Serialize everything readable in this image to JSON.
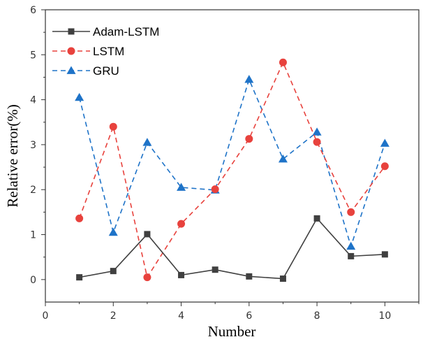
{
  "chart_data": {
    "type": "line",
    "title": "",
    "xlabel": "Number",
    "ylabel": "Relative error(%)",
    "xlim": [
      0,
      11
    ],
    "ylim": [
      -0.5,
      6
    ],
    "xticks": [
      0,
      2,
      4,
      6,
      8,
      10
    ],
    "yticks": [
      0,
      1,
      2,
      3,
      4,
      5,
      6
    ],
    "grid": false,
    "legend_position": "top-left",
    "x": [
      1,
      2,
      3,
      4,
      5,
      6,
      7,
      8,
      9,
      10
    ],
    "series": [
      {
        "name": "Adam-LSTM",
        "color": "#404040",
        "line_style": "solid",
        "marker": "square",
        "values": [
          0.05,
          0.19,
          1.01,
          0.1,
          0.22,
          0.07,
          0.02,
          1.36,
          0.52,
          0.56
        ]
      },
      {
        "name": "LSTM",
        "color": "#e8423d",
        "line_style": "dashed",
        "marker": "circle",
        "values": [
          1.36,
          3.4,
          0.05,
          1.24,
          2.01,
          3.13,
          4.83,
          3.06,
          1.5,
          2.52
        ]
      },
      {
        "name": "GRU",
        "color": "#1e73c8",
        "line_style": "dashed",
        "marker": "triangle",
        "values": [
          4.05,
          1.05,
          3.05,
          2.05,
          1.99,
          4.45,
          2.68,
          3.28,
          0.74,
          3.03
        ]
      }
    ]
  }
}
